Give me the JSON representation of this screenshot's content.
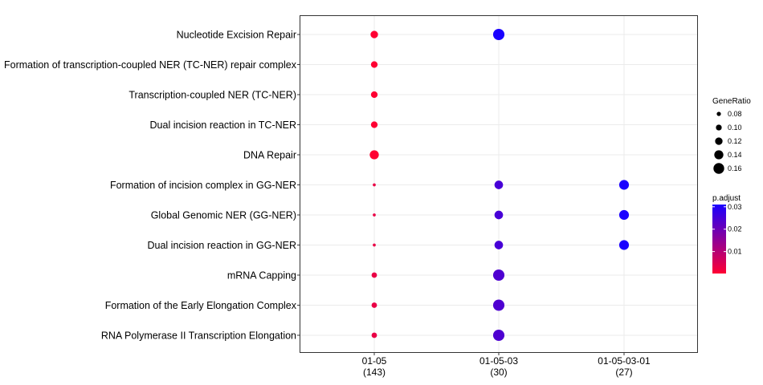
{
  "chart_data": {
    "type": "scatter",
    "title": "",
    "xlabel": "",
    "ylabel": "",
    "grid": true,
    "x_categories": [
      {
        "label": "01-05",
        "count": "(143)"
      },
      {
        "label": "01-05-03",
        "count": "(30)"
      },
      {
        "label": "01-05-03-01",
        "count": "(27)"
      }
    ],
    "y_categories": [
      "Nucleotide Excision Repair",
      "Formation of transcription-coupled NER (TC-NER) repair complex",
      "Transcription-coupled NER (TC-NER)",
      "Dual incision reaction in TC-NER",
      "DNA Repair",
      "Formation of incision complex in GG-NER",
      "Global Genomic NER (GG-NER)",
      "Dual incision reaction in GG-NER",
      "mRNA Capping",
      "Formation of the Early Elongation Complex",
      "RNA Polymerase II Transcription Elongation"
    ],
    "points": [
      {
        "x": 0,
        "y": 0,
        "gene_ratio": 0.12,
        "p_adjust": 0.0002
      },
      {
        "x": 0,
        "y": 1,
        "gene_ratio": 0.11,
        "p_adjust": 0.0002
      },
      {
        "x": 0,
        "y": 2,
        "gene_ratio": 0.11,
        "p_adjust": 0.0002
      },
      {
        "x": 0,
        "y": 3,
        "gene_ratio": 0.11,
        "p_adjust": 0.0002
      },
      {
        "x": 0,
        "y": 4,
        "gene_ratio": 0.14,
        "p_adjust": 0.0002
      },
      {
        "x": 0,
        "y": 5,
        "gene_ratio": 0.065,
        "p_adjust": 0.003
      },
      {
        "x": 0,
        "y": 6,
        "gene_ratio": 0.065,
        "p_adjust": 0.003
      },
      {
        "x": 0,
        "y": 7,
        "gene_ratio": 0.065,
        "p_adjust": 0.003
      },
      {
        "x": 0,
        "y": 8,
        "gene_ratio": 0.095,
        "p_adjust": 0.003
      },
      {
        "x": 0,
        "y": 9,
        "gene_ratio": 0.095,
        "p_adjust": 0.003
      },
      {
        "x": 0,
        "y": 10,
        "gene_ratio": 0.095,
        "p_adjust": 0.003
      },
      {
        "x": 1,
        "y": 0,
        "gene_ratio": 0.167,
        "p_adjust": 0.031
      },
      {
        "x": 1,
        "y": 5,
        "gene_ratio": 0.133,
        "p_adjust": 0.025
      },
      {
        "x": 1,
        "y": 6,
        "gene_ratio": 0.133,
        "p_adjust": 0.025
      },
      {
        "x": 1,
        "y": 7,
        "gene_ratio": 0.133,
        "p_adjust": 0.025
      },
      {
        "x": 1,
        "y": 8,
        "gene_ratio": 0.167,
        "p_adjust": 0.024
      },
      {
        "x": 1,
        "y": 9,
        "gene_ratio": 0.167,
        "p_adjust": 0.024
      },
      {
        "x": 1,
        "y": 10,
        "gene_ratio": 0.167,
        "p_adjust": 0.024
      },
      {
        "x": 2,
        "y": 5,
        "gene_ratio": 0.148,
        "p_adjust": 0.031
      },
      {
        "x": 2,
        "y": 6,
        "gene_ratio": 0.148,
        "p_adjust": 0.031
      },
      {
        "x": 2,
        "y": 7,
        "gene_ratio": 0.148,
        "p_adjust": 0.031
      }
    ],
    "size_legend": {
      "title": "GeneRatio",
      "values": [
        0.08,
        0.1,
        0.12,
        0.14,
        0.16
      ],
      "labels": [
        "0.08",
        "0.10",
        "0.12",
        "0.14",
        "0.16"
      ]
    },
    "color_legend": {
      "title": "p.adjust",
      "range": [
        0.0002,
        0.031
      ],
      "low_color": "#ff0033",
      "high_color": "#1a00ff",
      "tick_values": [
        0.01,
        0.02,
        0.03
      ],
      "tick_labels": [
        "0.01",
        "0.02",
        "0.03"
      ]
    }
  }
}
